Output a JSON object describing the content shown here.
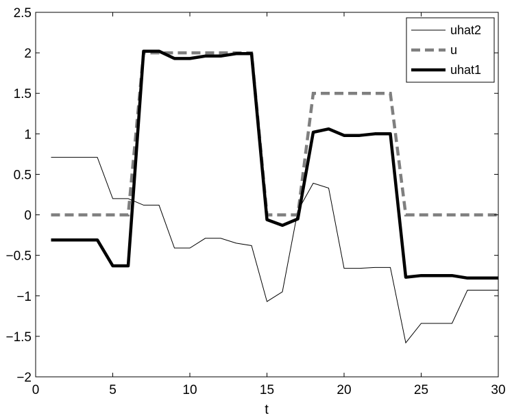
{
  "chart_data": {
    "type": "line",
    "title": "",
    "xlabel": "t",
    "ylabel": "",
    "xlim": [
      0,
      30
    ],
    "ylim": [
      -2,
      2.5
    ],
    "xticks": [
      0,
      5,
      10,
      15,
      20,
      25,
      30
    ],
    "xtick_labels": [
      "0",
      "5",
      "10",
      "15",
      "20",
      "25",
      "30"
    ],
    "yticks": [
      -2,
      -1.5,
      -1,
      -0.5,
      0,
      0.5,
      1,
      1.5,
      2,
      2.5
    ],
    "ytick_labels": [
      "−2",
      "−1.5",
      "−1",
      "−0.5",
      "0",
      "0.5",
      "1",
      "1.5",
      "2",
      "2.5"
    ],
    "grid": false,
    "legend_position": "top-right",
    "series": [
      {
        "name": "uhat2",
        "color": "#000000",
        "style": "thin-solid",
        "x": [
          1,
          2,
          3,
          4,
          5,
          6,
          7,
          8,
          9,
          10,
          11,
          12,
          13,
          14,
          15,
          16,
          17,
          18,
          19,
          20,
          21,
          22,
          23,
          24,
          25,
          26,
          27,
          28,
          29,
          30
        ],
        "y": [
          0.71,
          0.71,
          0.71,
          0.71,
          0.2,
          0.2,
          0.12,
          0.12,
          -0.41,
          -0.41,
          -0.29,
          -0.29,
          -0.35,
          -0.38,
          -1.07,
          -0.95,
          0.05,
          0.39,
          0.33,
          -0.66,
          -0.66,
          -0.65,
          -0.65,
          -1.58,
          -1.34,
          -1.34,
          -1.34,
          -0.93,
          -0.93,
          -0.93
        ]
      },
      {
        "name": "u",
        "color": "#7f7f7f",
        "style": "dashed",
        "x": [
          1,
          2,
          3,
          4,
          5,
          6,
          7,
          8,
          9,
          10,
          11,
          12,
          13,
          14,
          15,
          16,
          17,
          18,
          19,
          20,
          21,
          22,
          23,
          24,
          25,
          26,
          27,
          28,
          29,
          30
        ],
        "y": [
          0,
          0,
          0,
          0,
          0,
          0,
          2,
          2,
          2,
          2,
          2,
          2,
          2,
          2,
          0,
          0,
          0,
          1.5,
          1.5,
          1.5,
          1.5,
          1.5,
          1.5,
          0,
          0,
          0,
          0,
          0,
          0,
          0
        ]
      },
      {
        "name": "uhat1",
        "color": "#000000",
        "style": "thick-solid",
        "x": [
          1,
          2,
          3,
          4,
          5,
          6,
          7,
          8,
          9,
          10,
          11,
          12,
          13,
          14,
          15,
          16,
          17,
          18,
          19,
          20,
          21,
          22,
          23,
          24,
          25,
          26,
          27,
          28,
          29,
          30
        ],
        "y": [
          -0.31,
          -0.31,
          -0.31,
          -0.31,
          -0.63,
          -0.63,
          2.02,
          2.02,
          1.93,
          1.93,
          1.96,
          1.96,
          1.99,
          1.99,
          -0.06,
          -0.13,
          -0.05,
          1.02,
          1.06,
          0.98,
          0.98,
          1.0,
          1.0,
          -0.77,
          -0.75,
          -0.75,
          -0.75,
          -0.78,
          -0.78,
          -0.78
        ]
      }
    ]
  }
}
